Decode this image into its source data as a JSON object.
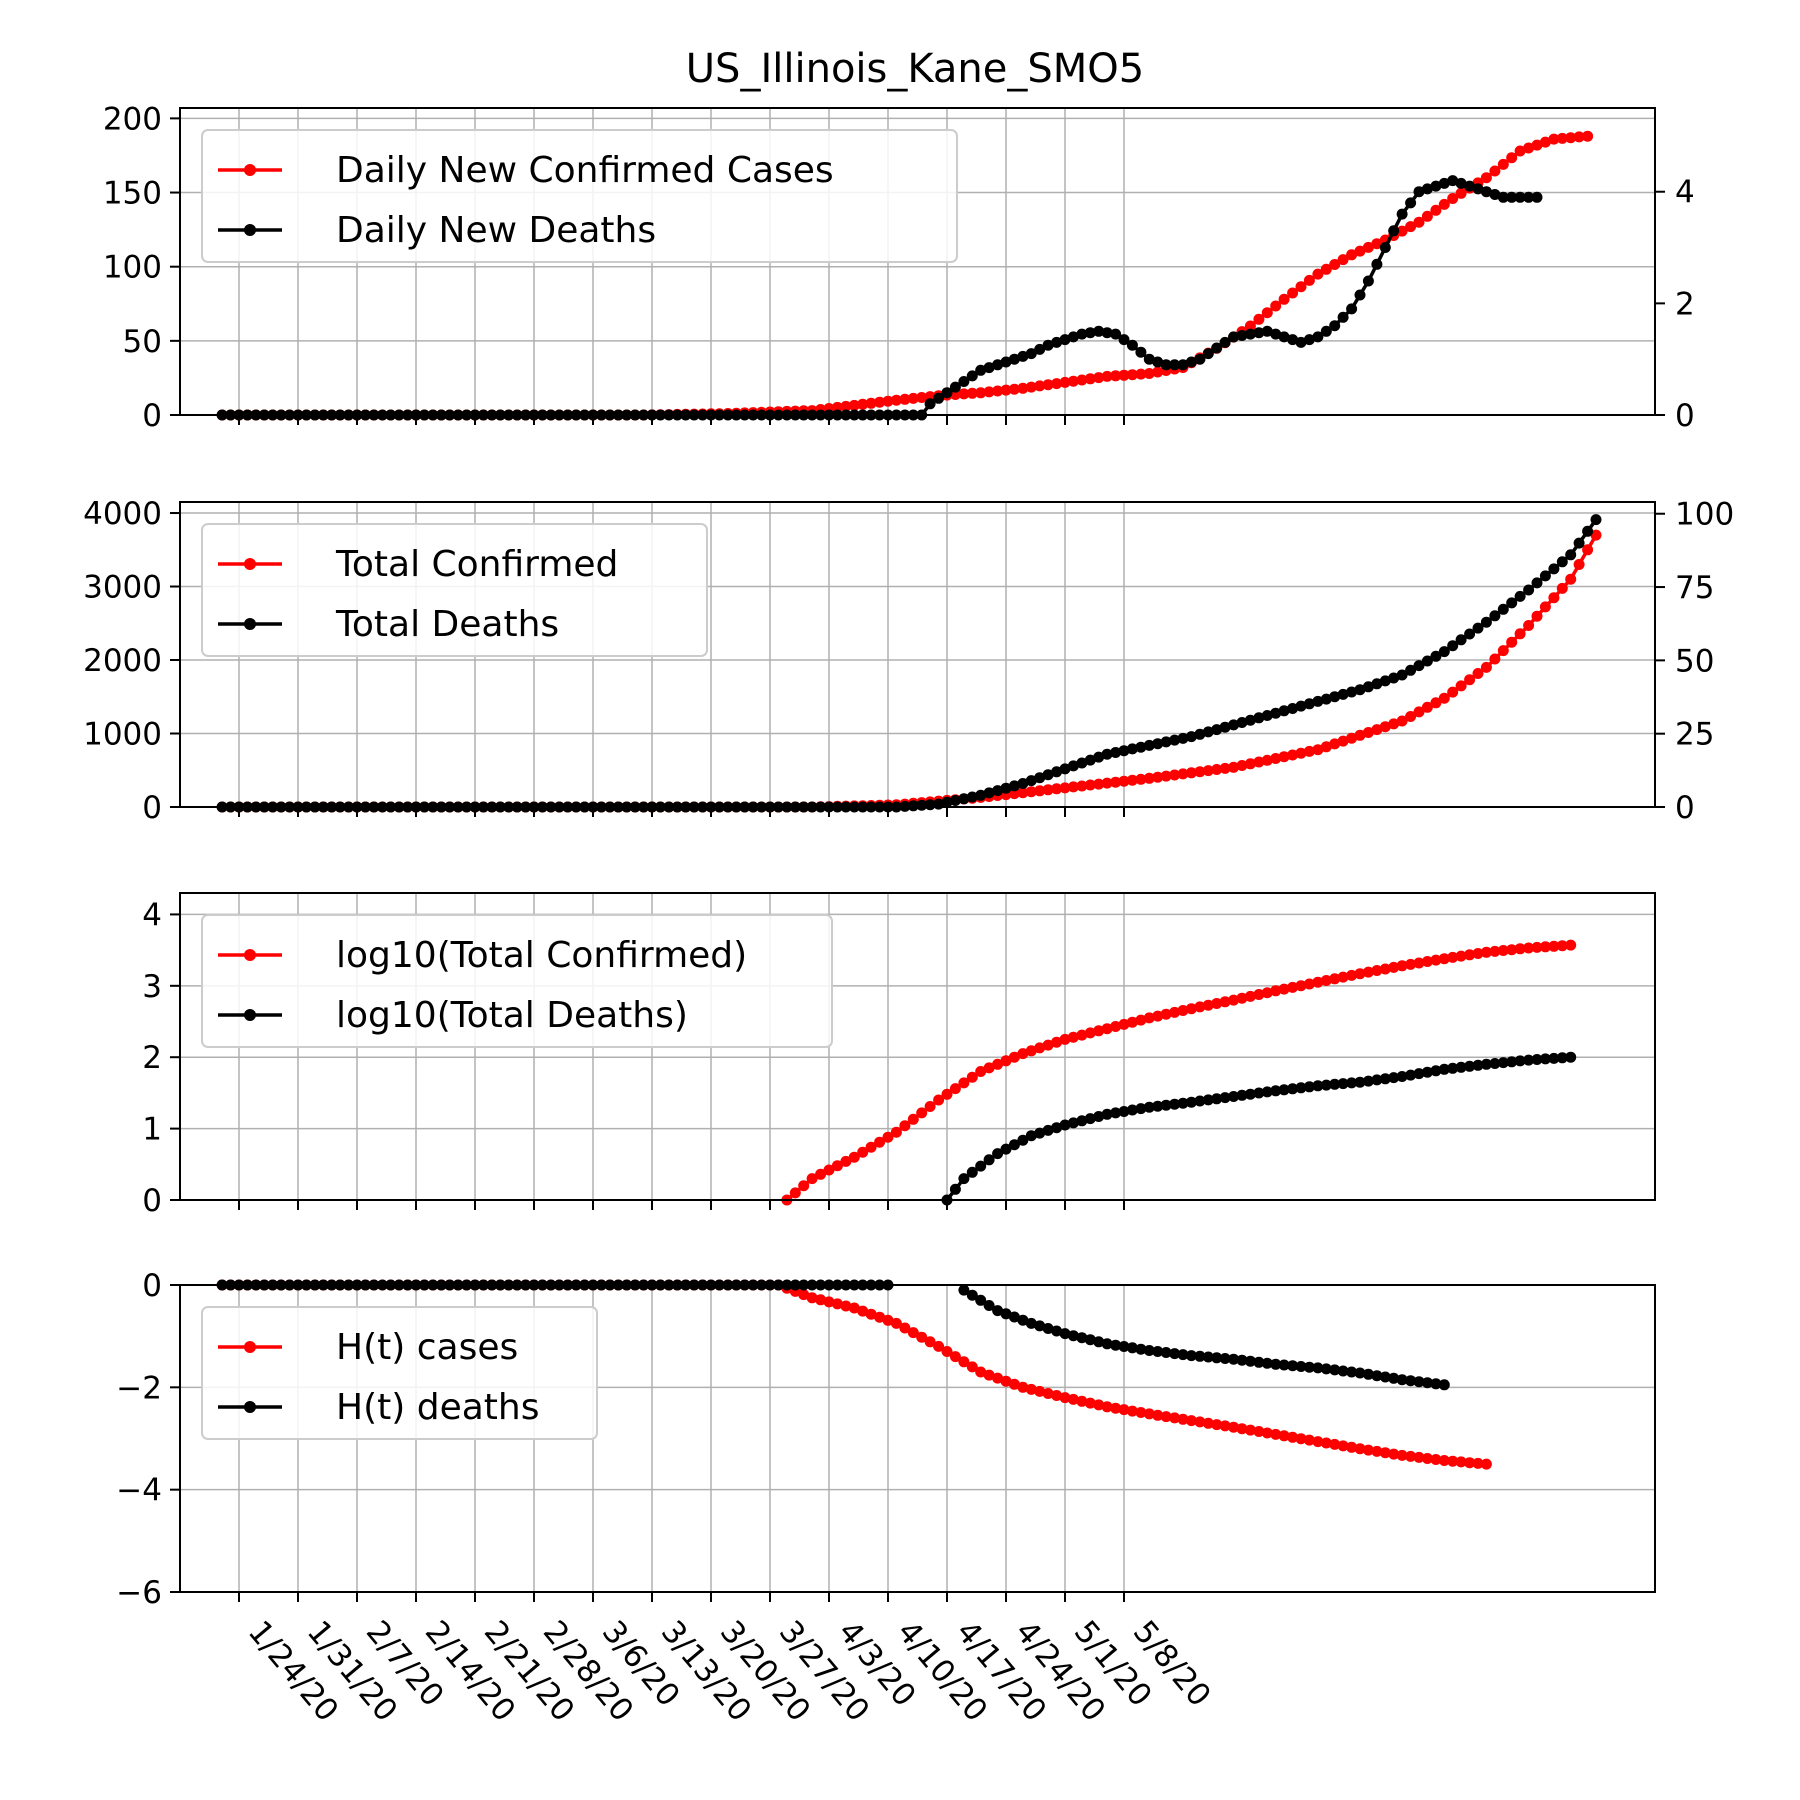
{
  "title": "US_Illinois_Kane_SMO5",
  "dates": [
    "1/24/20",
    "1/31/20",
    "2/7/20",
    "2/14/20",
    "2/21/20",
    "2/28/20",
    "3/6/20",
    "3/13/20",
    "3/20/20",
    "3/27/20",
    "4/3/20",
    "4/10/20",
    "4/17/20",
    "4/24/20",
    "5/1/20",
    "5/8/20"
  ],
  "chart_data": [
    {
      "type": "line",
      "x_unit": "days since 1/22/20",
      "ylim": [
        0,
        207
      ],
      "yticks": [
        "0",
        "50",
        "100",
        "150",
        "200"
      ],
      "ylim_right": [
        0,
        5.5
      ],
      "yticks_right": [
        "0",
        "2",
        "4"
      ],
      "legend": "top-left",
      "grid": true,
      "series": [
        {
          "name": "Daily New Confirmed Cases",
          "color": "#ff0000",
          "axis": "left",
          "points": [
            [
              0,
              0
            ],
            [
              50,
              0
            ],
            [
              60,
              1
            ],
            [
              70,
              3
            ],
            [
              80,
              10
            ],
            [
              85,
              13
            ],
            [
              90,
              15
            ],
            [
              95,
              18
            ],
            [
              100,
              22
            ],
            [
              105,
              26
            ],
            [
              110,
              28
            ],
            [
              114,
              32
            ],
            [
              118,
              45
            ],
            [
              122,
              60
            ],
            [
              126,
              78
            ],
            [
              130,
              95
            ],
            [
              134,
              108
            ],
            [
              138,
              118
            ],
            [
              142,
              130
            ],
            [
              146,
              146
            ],
            [
              150,
              160
            ],
            [
              154,
              178
            ],
            [
              158,
              186
            ],
            [
              162,
              188
            ]
          ]
        },
        {
          "name": "Daily New Deaths",
          "color": "#000000",
          "axis": "right",
          "points": [
            [
              0,
              0
            ],
            [
              83,
              0
            ],
            [
              84,
              0.2
            ],
            [
              86,
              0.4
            ],
            [
              88,
              0.6
            ],
            [
              90,
              0.8
            ],
            [
              92,
              0.9
            ],
            [
              94,
              1.0
            ],
            [
              96,
              1.1
            ],
            [
              98,
              1.25
            ],
            [
              100,
              1.35
            ],
            [
              102,
              1.45
            ],
            [
              104,
              1.5
            ],
            [
              106,
              1.45
            ],
            [
              108,
              1.25
            ],
            [
              110,
              1.0
            ],
            [
              112,
              0.9
            ],
            [
              114,
              0.9
            ],
            [
              116,
              1.0
            ],
            [
              118,
              1.2
            ],
            [
              120,
              1.4
            ],
            [
              122,
              1.45
            ],
            [
              124,
              1.5
            ],
            [
              126,
              1.4
            ],
            [
              128,
              1.3
            ],
            [
              130,
              1.4
            ],
            [
              132,
              1.6
            ],
            [
              134,
              1.9
            ],
            [
              136,
              2.4
            ],
            [
              138,
              3.0
            ],
            [
              140,
              3.6
            ],
            [
              142,
              4.0
            ],
            [
              144,
              4.1
            ],
            [
              146,
              4.2
            ],
            [
              148,
              4.1
            ],
            [
              150,
              4.0
            ],
            [
              152,
              3.9
            ],
            [
              154,
              3.9
            ],
            [
              156,
              3.9
            ]
          ]
        }
      ]
    },
    {
      "type": "line",
      "x_unit": "days since 1/22/20",
      "ylim": [
        0,
        4150
      ],
      "yticks": [
        "0",
        "1000",
        "2000",
        "3000",
        "4000"
      ],
      "ylim_right": [
        0,
        104
      ],
      "yticks_right": [
        "0",
        "25",
        "50",
        "75",
        "100"
      ],
      "legend": "top-left",
      "grid": true,
      "series": [
        {
          "name": "Total Confirmed",
          "color": "#ff0000",
          "axis": "left",
          "points": [
            [
              0,
              0
            ],
            [
              70,
              0
            ],
            [
              80,
              30
            ],
            [
              90,
              130
            ],
            [
              100,
              260
            ],
            [
              110,
              390
            ],
            [
              120,
              540
            ],
            [
              130,
              780
            ],
            [
              140,
              1170
            ],
            [
              145,
              1480
            ],
            [
              150,
              1900
            ],
            [
              155,
              2470
            ],
            [
              160,
              3100
            ],
            [
              163,
              3700
            ]
          ]
        },
        {
          "name": "Total Deaths",
          "color": "#000000",
          "axis": "right",
          "points": [
            [
              0,
              0
            ],
            [
              80,
              0
            ],
            [
              85,
              1
            ],
            [
              90,
              4
            ],
            [
              95,
              8
            ],
            [
              100,
              13
            ],
            [
              105,
              18
            ],
            [
              110,
              21
            ],
            [
              115,
              24
            ],
            [
              120,
              28
            ],
            [
              125,
              32
            ],
            [
              130,
              36
            ],
            [
              135,
              40
            ],
            [
              140,
              45
            ],
            [
              145,
              53
            ],
            [
              150,
              63
            ],
            [
              155,
              74
            ],
            [
              160,
              86
            ],
            [
              163,
              98
            ]
          ]
        }
      ]
    },
    {
      "type": "line",
      "x_unit": "days since 1/22/20",
      "ylim": [
        0,
        4.3
      ],
      "yticks": [
        "0",
        "1",
        "2",
        "3",
        "4"
      ],
      "legend": "top-left",
      "grid": true,
      "series": [
        {
          "name": "log10(Total Confirmed)",
          "color": "#ff0000",
          "axis": "left",
          "points": [
            [
              67,
              0
            ],
            [
              70,
              0.3
            ],
            [
              75,
              0.6
            ],
            [
              80,
              0.95
            ],
            [
              85,
              1.4
            ],
            [
              90,
              1.8
            ],
            [
              95,
              2.05
            ],
            [
              100,
              2.25
            ],
            [
              105,
              2.4
            ],
            [
              110,
              2.55
            ],
            [
              115,
              2.68
            ],
            [
              120,
              2.8
            ],
            [
              125,
              2.93
            ],
            [
              130,
              3.05
            ],
            [
              135,
              3.17
            ],
            [
              140,
              3.28
            ],
            [
              145,
              3.38
            ],
            [
              150,
              3.47
            ],
            [
              155,
              3.53
            ],
            [
              160,
              3.57
            ]
          ]
        },
        {
          "name": "log10(Total Deaths)",
          "color": "#000000",
          "axis": "left",
          "points": [
            [
              86,
              0
            ],
            [
              88,
              0.3
            ],
            [
              92,
              0.65
            ],
            [
              96,
              0.9
            ],
            [
              100,
              1.05
            ],
            [
              105,
              1.2
            ],
            [
              110,
              1.3
            ],
            [
              115,
              1.37
            ],
            [
              120,
              1.45
            ],
            [
              125,
              1.53
            ],
            [
              130,
              1.6
            ],
            [
              135,
              1.65
            ],
            [
              140,
              1.73
            ],
            [
              145,
              1.83
            ],
            [
              150,
              1.9
            ],
            [
              155,
              1.96
            ],
            [
              160,
              2.0
            ]
          ]
        }
      ]
    },
    {
      "type": "line",
      "x_unit": "days since 1/22/20",
      "ylim": [
        -6,
        0
      ],
      "yticks": [
        "−6",
        "−4",
        "−2",
        "0"
      ],
      "legend": "top-left",
      "grid": true,
      "series": [
        {
          "name": "H(t) cases",
          "color": "#ff0000",
          "axis": "left",
          "points": [
            [
              0,
              0
            ],
            [
              66,
              0
            ],
            [
              70,
              -0.25
            ],
            [
              75,
              -0.45
            ],
            [
              80,
              -0.75
            ],
            [
              85,
              -1.2
            ],
            [
              90,
              -1.7
            ],
            [
              95,
              -2.0
            ],
            [
              100,
              -2.2
            ],
            [
              105,
              -2.38
            ],
            [
              110,
              -2.52
            ],
            [
              115,
              -2.65
            ],
            [
              120,
              -2.78
            ],
            [
              125,
              -2.92
            ],
            [
              130,
              -3.06
            ],
            [
              135,
              -3.2
            ],
            [
              140,
              -3.33
            ],
            [
              145,
              -3.43
            ],
            [
              150,
              -3.5
            ]
          ]
        },
        {
          "name": "H(t) deaths",
          "color": "#000000",
          "axis": "left",
          "points": [
            [
              0,
              0
            ],
            [
              79,
              0
            ],
            [
              79,
              null
            ],
            [
              88,
              -0.1
            ],
            [
              92,
              -0.5
            ],
            [
              96,
              -0.75
            ],
            [
              100,
              -0.95
            ],
            [
              105,
              -1.15
            ],
            [
              110,
              -1.28
            ],
            [
              115,
              -1.38
            ],
            [
              120,
              -1.45
            ],
            [
              125,
              -1.55
            ],
            [
              130,
              -1.62
            ],
            [
              135,
              -1.72
            ],
            [
              140,
              -1.85
            ],
            [
              145,
              -1.95
            ]
          ]
        }
      ]
    }
  ]
}
